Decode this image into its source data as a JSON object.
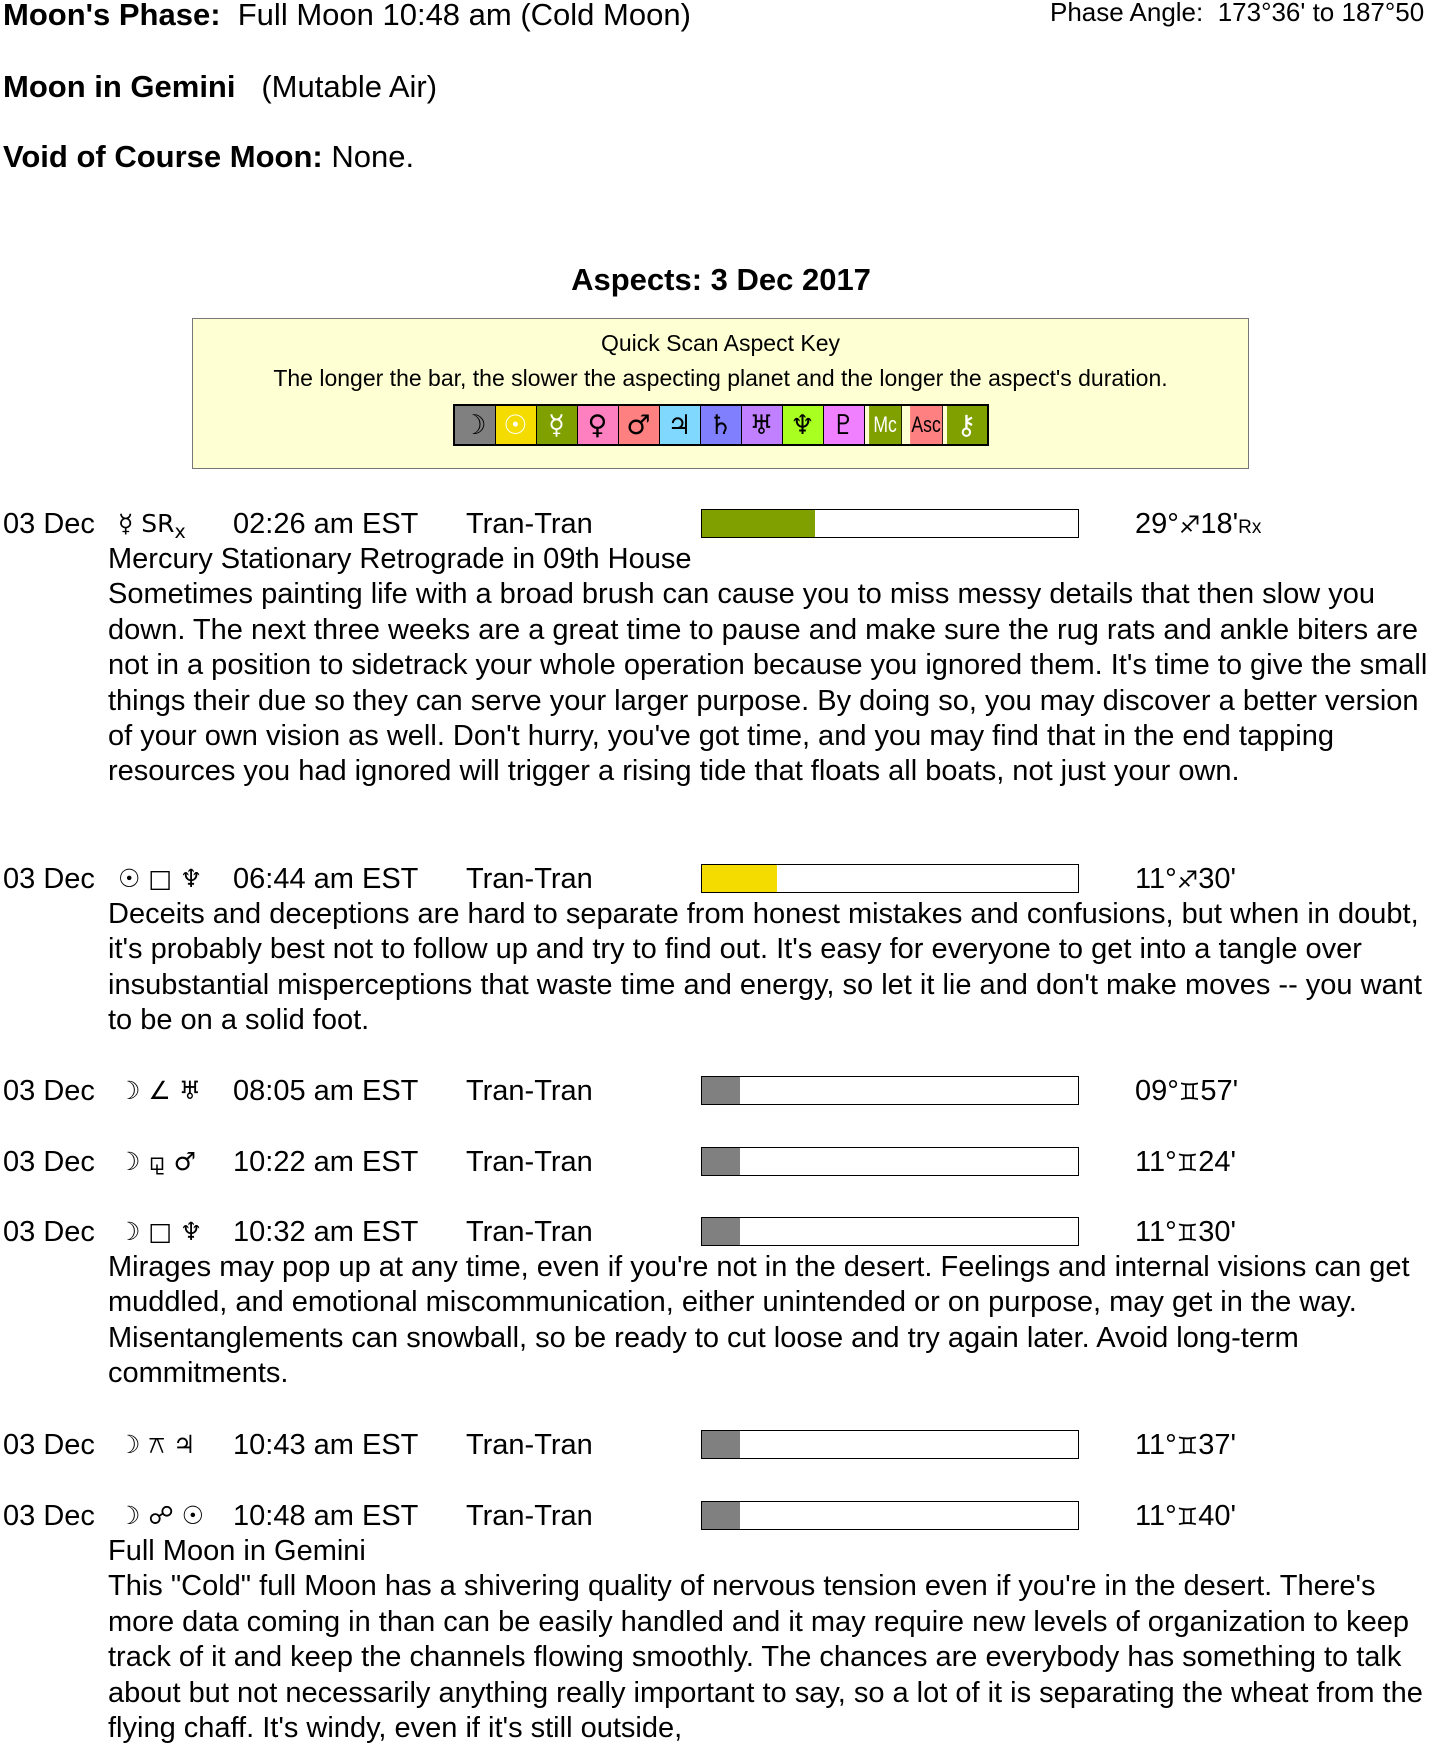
{
  "header": {
    "phase_label": "Moon's Phase:",
    "phase_value": "Full Moon 10:48 am (Cold Moon)",
    "phase_angle_label": "Phase Angle:",
    "phase_angle_value": "173°36' to 187°50",
    "moon_sign_label": "Moon in Gemini",
    "moon_sign_value": "(Mutable Air)",
    "void_label": "Void of Course Moon:",
    "void_value": "None."
  },
  "aspects_heading": "Aspects: 3 Dec 2017",
  "key": {
    "title": "Quick Scan Aspect Key",
    "description": "The longer the bar, the slower the aspecting planet and the longer the aspect's duration.",
    "items": [
      {
        "name": "moon",
        "glyph": "☽",
        "bg": "#808080",
        "fg": "#000000"
      },
      {
        "name": "sun",
        "glyph": "☉",
        "bg": "#f5dc00",
        "fg": "#ffffff"
      },
      {
        "name": "mercury",
        "glyph": "☿",
        "bg": "#80a000",
        "fg": "#ffffff"
      },
      {
        "name": "venus",
        "glyph": "♀",
        "bg": "#ff80c0",
        "fg": "#000000"
      },
      {
        "name": "mars",
        "glyph": "♂",
        "bg": "#ff8080",
        "fg": "#000000"
      },
      {
        "name": "jupiter",
        "glyph": "♃",
        "bg": "#80d8ff",
        "fg": "#000000"
      },
      {
        "name": "saturn",
        "glyph": "♄",
        "bg": "#8080ff",
        "fg": "#000000"
      },
      {
        "name": "uranus",
        "glyph": "♅",
        "bg": "#c080ff",
        "fg": "#000000"
      },
      {
        "name": "neptune",
        "glyph": "♆",
        "bg": "#a8ff20",
        "fg": "#000000"
      },
      {
        "name": "pluto",
        "glyph": "♇",
        "bg": "#f080ff",
        "fg": "#000000"
      },
      {
        "name": "midheaven",
        "glyph": "Mc",
        "bg": "#80a000",
        "fg": "#ffffff"
      },
      {
        "name": "ascendant",
        "glyph": "Asc",
        "bg": "#ff8080",
        "fg": "#000000"
      },
      {
        "name": "chiron",
        "glyph": "⚷",
        "bg": "#80a000",
        "fg": "#ffffff"
      }
    ]
  },
  "entries": [
    {
      "date": "03 Dec",
      "aspect": "☿ SR",
      "aspect_rx": "x",
      "time": "02:26 am EST",
      "kind": "Tran-Tran",
      "bar_fraction": 0.3,
      "bar_color": "#80a000",
      "pos_deg": "29°",
      "pos_sign": "♐",
      "pos_min": "18'",
      "pos_rx": "Rx",
      "title": "Mercury Stationary Retrograde in 09th House",
      "text": "Sometimes painting life with a broad brush can cause you to miss messy details that then slow you down. The next three weeks are a great time to pause and make sure the rug rats and ankle biters are not in a position to sidetrack your whole operation because you ignored them. It's time to give the small things their due so they can serve your larger purpose. By doing so, you may discover a better version of your own vision as well. Don't hurry, you've got time, and you may find that in the end tapping resources you had ignored will trigger a rising tide that floats all boats, not just your own."
    },
    {
      "date": "03 Dec",
      "aspect": "☉ □ ♆",
      "time": "06:44 am EST",
      "kind": "Tran-Tran",
      "bar_fraction": 0.2,
      "bar_color": "#f5dc00",
      "pos_deg": "11°",
      "pos_sign": "♐",
      "pos_min": "30'",
      "text": "Deceits and deceptions are hard to separate from honest mistakes and confusions, but when in doubt, it's probably best not to follow up and try to find out. It's easy for everyone to get into a tangle over insubstantial misperceptions that waste time and energy, so let it lie and don't make moves -- you want to be on a solid foot."
    },
    {
      "date": "03 Dec",
      "aspect": "☽ ∠ ♅",
      "time": "08:05 am EST",
      "kind": "Tran-Tran",
      "bar_fraction": 0.1,
      "bar_color": "#808080",
      "pos_deg": "09°",
      "pos_sign": "♊",
      "pos_min": "57'"
    },
    {
      "date": "03 Dec",
      "aspect": "☽ ⚼ ♂",
      "time": "10:22 am EST",
      "kind": "Tran-Tran",
      "bar_fraction": 0.1,
      "bar_color": "#808080",
      "pos_deg": "11°",
      "pos_sign": "♊",
      "pos_min": "24'"
    },
    {
      "date": "03 Dec",
      "aspect": "☽ □ ♆",
      "time": "10:32 am EST",
      "kind": "Tran-Tran",
      "bar_fraction": 0.1,
      "bar_color": "#808080",
      "pos_deg": "11°",
      "pos_sign": "♊",
      "pos_min": "30'",
      "text": "Mirages may pop up at any time, even if you're not in the desert. Feelings and internal visions can get muddled, and emotional miscommunication, either unintended or on purpose, may get in the way. Misentanglements can snowball, so be ready to cut loose and try again later. Avoid long-term commitments."
    },
    {
      "date": "03 Dec",
      "aspect": "☽ ⚻ ♃",
      "time": "10:43 am EST",
      "kind": "Tran-Tran",
      "bar_fraction": 0.1,
      "bar_color": "#808080",
      "pos_deg": "11°",
      "pos_sign": "♊",
      "pos_min": "37'"
    },
    {
      "date": "03 Dec",
      "aspect": "☽ ☍ ☉",
      "time": "10:48 am EST",
      "kind": "Tran-Tran",
      "bar_fraction": 0.1,
      "bar_color": "#808080",
      "pos_deg": "11°",
      "pos_sign": "♊",
      "pos_min": "40'",
      "title": "Full Moon in Gemini",
      "text": "This \"Cold\" full Moon has a shivering quality of nervous tension even if you're in the desert. There's more data coming in than can be easily handled and it may require new levels of organization to keep track of it and keep the channels flowing smoothly. The chances are everybody has something to talk about but not necessarily anything really important to say, so a lot of it is separating the wheat from the flying chaff. It's windy, even if it's still outside,"
    }
  ]
}
